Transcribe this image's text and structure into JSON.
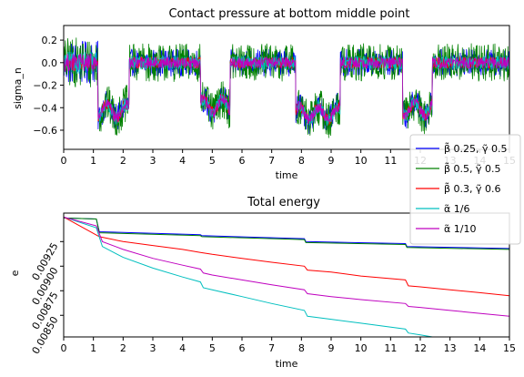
{
  "chart_data": [
    {
      "type": "line",
      "title": "Contact pressure at bottom middle point",
      "xlabel": "time",
      "ylabel": "sigma_n",
      "xlim": [
        0,
        15
      ],
      "ylim": [
        -0.77,
        0.33
      ],
      "xticks": [
        "0",
        "1",
        "2",
        "3",
        "4",
        "5",
        "6",
        "7",
        "8",
        "9",
        "10",
        "11",
        "12",
        "13",
        "14",
        "15"
      ],
      "yticks": [
        "0.2",
        "0.0",
        "−0.2",
        "−0.4",
        "−0.6"
      ],
      "ytick_values": [
        0.2,
        0.0,
        -0.2,
        -0.4,
        -0.6
      ],
      "segments": [
        [
          0.0,
          1.15,
          0.0
        ],
        [
          1.15,
          2.2,
          -0.4
        ],
        [
          2.2,
          4.6,
          0.0
        ],
        [
          4.6,
          5.6,
          -0.35
        ],
        [
          5.6,
          7.8,
          0.0
        ],
        [
          7.8,
          9.3,
          -0.42
        ],
        [
          9.3,
          11.4,
          0.0
        ],
        [
          11.4,
          12.4,
          -0.38
        ],
        [
          12.4,
          15.0,
          0.0
        ]
      ],
      "series": [
        {
          "name": "β̃ 0.25, γ̃ 0.5",
          "color": "#0000ff",
          "noise": 0.12
        },
        {
          "name": "β̃ 0.5, γ̃ 0.5",
          "color": "#008000",
          "noise": 0.17
        },
        {
          "name": "β̃ 0.3, γ̃ 0.6",
          "color": "#ff0000",
          "noise": 0.05
        },
        {
          "name": "α̃ 1/6",
          "color": "#00bfbf",
          "noise": 0.06
        },
        {
          "name": "α̃ 1/10",
          "color": "#bf00bf",
          "noise": 0.05
        }
      ]
    },
    {
      "type": "line",
      "title": "Total energy",
      "xlabel": "time",
      "ylabel": "e",
      "xlim": [
        0,
        15
      ],
      "ylim": [
        0.00828,
        0.00954
      ],
      "xticks": [
        "0",
        "1",
        "2",
        "3",
        "4",
        "5",
        "6",
        "7",
        "8",
        "9",
        "10",
        "11",
        "12",
        "13",
        "14",
        "15"
      ],
      "yticks": [
        "0.00850",
        "0.00875",
        "0.00900",
        "0.00925"
      ],
      "ytick_values": [
        0.0085,
        0.00875,
        0.009,
        0.00925
      ],
      "series": [
        {
          "name": "β̃ 0.25, γ̃ 0.5",
          "color": "#0000ff",
          "x": [
            0,
            1.1,
            1.2,
            4.6,
            4.65,
            8.1,
            8.15,
            11.5,
            11.55,
            15
          ],
          "y": [
            0.00949,
            0.00948,
            0.00935,
            0.00932,
            0.00931,
            0.00928,
            0.00925,
            0.00923,
            0.0092,
            0.00918
          ]
        },
        {
          "name": "β̃ 0.5, γ̃ 0.5",
          "color": "#008000",
          "x": [
            0,
            1.1,
            1.2,
            4.6,
            4.65,
            8.1,
            8.15,
            11.5,
            11.55,
            15
          ],
          "y": [
            0.00949,
            0.00948,
            0.00934,
            0.00931,
            0.0093,
            0.00927,
            0.00924,
            0.00922,
            0.00919,
            0.00917
          ]
        },
        {
          "name": "β̃ 0.3, γ̃ 0.6",
          "color": "#ff0000",
          "x": [
            0,
            1.2,
            2,
            3,
            4,
            4.6,
            5,
            6,
            7,
            8.1,
            8.2,
            9,
            10,
            11.5,
            11.6,
            12,
            13,
            14,
            15
          ],
          "y": [
            0.0095,
            0.0093,
            0.00925,
            0.00921,
            0.00917,
            0.00914,
            0.00912,
            0.00908,
            0.00904,
            0.009,
            0.00896,
            0.00894,
            0.0089,
            0.00886,
            0.0088,
            0.00879,
            0.00876,
            0.00873,
            0.0087
          ]
        },
        {
          "name": "α̃ 1/6",
          "color": "#00bfbf",
          "x": [
            0,
            1.1,
            1.3,
            2,
            3,
            4,
            4.6,
            4.7,
            5,
            6,
            7,
            8.1,
            8.2,
            9,
            10,
            11.5,
            11.6,
            12,
            13,
            14,
            15
          ],
          "y": [
            0.0095,
            0.00939,
            0.0092,
            0.00909,
            0.00898,
            0.00889,
            0.00884,
            0.00878,
            0.00876,
            0.00869,
            0.00862,
            0.00855,
            0.00849,
            0.00846,
            0.00842,
            0.00836,
            0.00832,
            0.0083,
            0.00825,
            0.00818,
            0.00814
          ]
        },
        {
          "name": "α̃ 1/10",
          "color": "#bf00bf",
          "x": [
            0,
            1.1,
            1.3,
            2,
            3,
            4,
            4.6,
            4.7,
            5,
            6,
            7,
            8.1,
            8.2,
            9,
            10,
            11.5,
            11.6,
            12,
            13,
            14,
            15
          ],
          "y": [
            0.0095,
            0.00941,
            0.00925,
            0.00917,
            0.00908,
            0.00901,
            0.00897,
            0.00893,
            0.00891,
            0.00886,
            0.00881,
            0.00876,
            0.00872,
            0.00869,
            0.00866,
            0.00862,
            0.00859,
            0.00858,
            0.00855,
            0.00852,
            0.00849
          ]
        }
      ]
    }
  ]
}
